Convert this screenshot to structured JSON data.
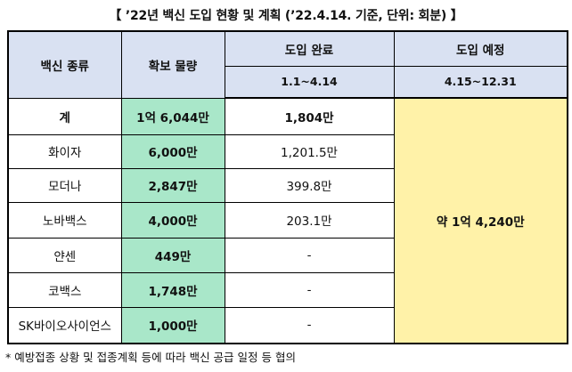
{
  "title": "【 ’22년 백신 도입 현황 및 계획 (’22.4.14. 기준, 단위: 회분) 】",
  "header": {
    "vaccine_type": "백신 종류",
    "secured_amount": "확보 물량",
    "introduced": "도입 완료",
    "introduced_period": "1.1~4.14",
    "planned": "도입 예정",
    "planned_period": "4.15~12.31"
  },
  "rows": [
    {
      "name": "계",
      "secured": "1억 6,044만",
      "introduced": "1,804만"
    },
    {
      "name": "화이자",
      "secured": "6,000만",
      "introduced": "1,201.5만"
    },
    {
      "name": "모더나",
      "secured": "2,847만",
      "introduced": "399.8만"
    },
    {
      "name": "노바백스",
      "secured": "4,000만",
      "introduced": "203.1만"
    },
    {
      "name": "얀센",
      "secured": "449만",
      "introduced": "-"
    },
    {
      "name": "코백스",
      "secured": "1,748만",
      "introduced": "-"
    },
    {
      "name": "SK바이오사이언스",
      "secured": "1,000만",
      "introduced": "-"
    }
  ],
  "planned_total": "약 1억 4,240만",
  "footnote": "* 예방접종 상황 및 접종계획 등에 따라 백신 공급 일정 등 협의",
  "colors": {
    "header_bg": "#d9e1f2",
    "secured_bg": "#a9e7c9",
    "planned_bg": "#fff2a8"
  }
}
